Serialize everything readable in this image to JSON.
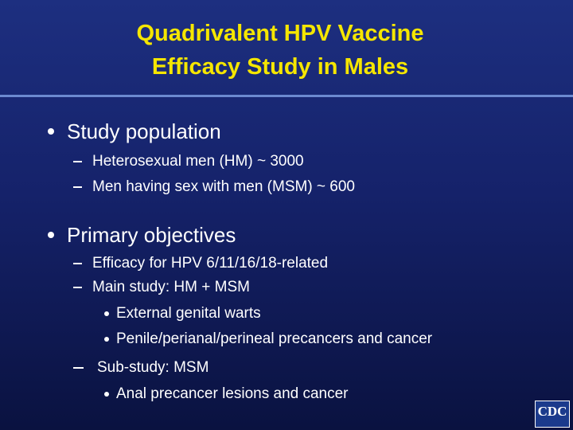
{
  "title": [
    "Quadrivalent HPV Vaccine",
    "Efficacy Study in Males"
  ],
  "sections": [
    {
      "heading": "Study population",
      "items": [
        {
          "text": "Heterosexual men (HM) ~ 3000"
        },
        {
          "text": "Men having sex with men (MSM) ~ 600"
        }
      ]
    },
    {
      "heading": "Primary objectives",
      "items": [
        {
          "text": "Efficacy for HPV 6/11/16/18‑related"
        },
        {
          "text": "Main study:  HM + MSM",
          "subitems": [
            "External genital warts",
            "Penile/perianal/perineal precancers and cancer"
          ]
        },
        {
          "text": "Sub-study: MSM",
          "subitems": [
            "Anal precancer lesions and cancer"
          ]
        }
      ]
    }
  ],
  "logo": "CDC"
}
